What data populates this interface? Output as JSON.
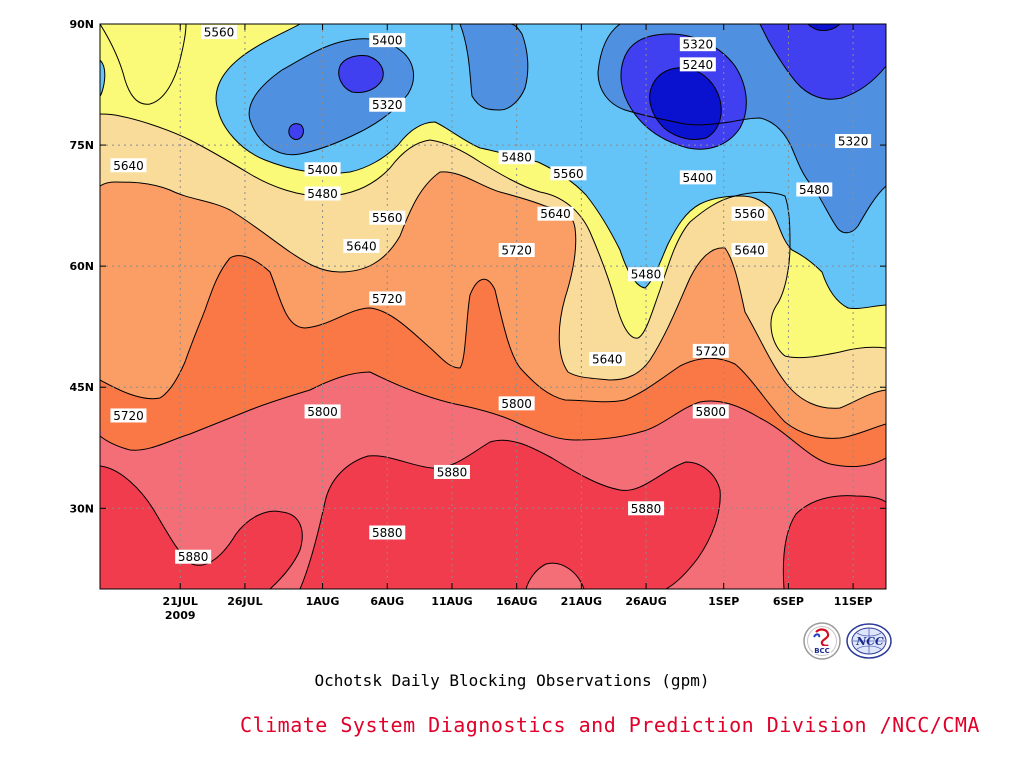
{
  "chart_data": {
    "type": "heatmap",
    "subtitle": "Ochotsk Daily Blocking Observations (gpm)",
    "credit": "Climate System Diagnostics and Prediction Division /NCC/CMA",
    "x_ticks": [
      "21JUL",
      "26JUL",
      "1AUG",
      "6AUG",
      "11AUG",
      "16AUG",
      "21AUG",
      "26AUG",
      "1SEP",
      "6SEP",
      "11SEP"
    ],
    "x_year": "2009",
    "y_ticks": [
      "90N",
      "75N",
      "60N",
      "45N",
      "30N"
    ],
    "ylim": [
      20,
      90
    ],
    "levels": [
      5240,
      5320,
      5400,
      5480,
      5560,
      5640,
      5720,
      5800,
      5880
    ],
    "colors": {
      "below_5240": "#0a12d0",
      "5240_5320": "#4040f0",
      "5320_5400": "#5090e0",
      "5400_5480": "#64c4f8",
      "5480_5560": "#fafa78",
      "5560_5640": "#fadc9a",
      "5640_5720": "#fa9e66",
      "5720_5800": "#fa7846",
      "5800_5880": "#f46e78",
      "above_5880": "#f03c4c"
    },
    "contour_labels": [
      {
        "text": "5560",
        "day": "24 Jul",
        "lat": 89
      },
      {
        "text": "5400",
        "day": "6 Aug",
        "lat": 88
      },
      {
        "text": "5320",
        "day": "6 Aug",
        "lat": 80
      },
      {
        "text": "5400",
        "day": "1 Aug",
        "lat": 72
      },
      {
        "text": "5480",
        "day": "1 Aug",
        "lat": 69
      },
      {
        "text": "5560",
        "day": "6 Aug",
        "lat": 66
      },
      {
        "text": "5640",
        "day": "17 Jul",
        "lat": 72.5
      },
      {
        "text": "5640",
        "day": "4 Aug",
        "lat": 62.5
      },
      {
        "text": "5720",
        "day": "6 Aug",
        "lat": 56
      },
      {
        "text": "5720",
        "day": "16 Aug",
        "lat": 62
      },
      {
        "text": "5480",
        "day": "16 Aug",
        "lat": 73.5
      },
      {
        "text": "5560",
        "day": "20 Aug",
        "lat": 71.5
      },
      {
        "text": "5640",
        "day": "19 Aug",
        "lat": 66.5
      },
      {
        "text": "5320",
        "day": "30 Aug",
        "lat": 87.5
      },
      {
        "text": "5240",
        "day": "30 Aug",
        "lat": 85
      },
      {
        "text": "5400",
        "day": "30 Aug",
        "lat": 71
      },
      {
        "text": "5480",
        "day": "8 Sep",
        "lat": 69.5
      },
      {
        "text": "5560",
        "day": "3 Sep",
        "lat": 66.5
      },
      {
        "text": "5640",
        "day": "3 Sep",
        "lat": 62
      },
      {
        "text": "5320",
        "day": "11 Sep",
        "lat": 75.5
      },
      {
        "text": "5480",
        "day": "26 Aug",
        "lat": 59
      },
      {
        "text": "5640",
        "day": "23 Aug",
        "lat": 48.5
      },
      {
        "text": "5720",
        "day": "31 Aug",
        "lat": 49.5
      },
      {
        "text": "5800",
        "day": "31 Aug",
        "lat": 42
      },
      {
        "text": "5800",
        "day": "16 Aug",
        "lat": 43
      },
      {
        "text": "5800",
        "day": "1 Aug",
        "lat": 42
      },
      {
        "text": "5720",
        "day": "17 Jul",
        "lat": 41.5
      },
      {
        "text": "5880",
        "day": "11 Aug",
        "lat": 34.5
      },
      {
        "text": "5880",
        "day": "6 Aug",
        "lat": 27
      },
      {
        "text": "5880",
        "day": "26 Aug",
        "lat": 30
      },
      {
        "text": "5880",
        "day": "22 Jul",
        "lat": 24
      }
    ]
  }
}
